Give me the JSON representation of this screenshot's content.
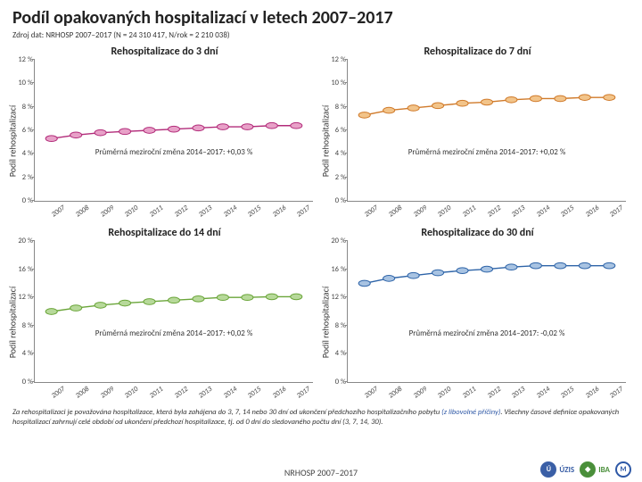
{
  "title": "Podíl opakovaných hospitalizací v letech 2007–2017",
  "source": "Zdroj dat: NRHOSP 2007–2017 (N = 24 310 417, N/rok = 2 210 038)",
  "years": [
    "2007",
    "2008",
    "2009",
    "2010",
    "2011",
    "2012",
    "2013",
    "2014",
    "2015",
    "2016",
    "2017"
  ],
  "y_axis_label": "Podíl rehospitalizací",
  "y_ticks_lower": [
    0,
    2,
    4,
    6,
    8,
    10,
    12
  ],
  "y_ticks_upper": [
    0,
    4,
    8,
    12,
    16,
    20
  ],
  "panels": [
    {
      "title": "Rehospitalizace do 3 dní",
      "annotation": "Průměrná meziroční změna 2014–2017: +0,03 %",
      "ylim": [
        0,
        12
      ],
      "ticks": "lower",
      "values": [
        5.3,
        5.6,
        5.8,
        5.9,
        6.0,
        6.1,
        6.2,
        6.3,
        6.3,
        6.4,
        6.4
      ],
      "line_color": "#b22c7a",
      "marker_fill": "#e8a1c8"
    },
    {
      "title": "Rehospitalizace do 7 dní",
      "annotation": "Průměrná meziroční změna 2014–2017: +0,02 %",
      "ylim": [
        0,
        12
      ],
      "ticks": "lower",
      "values": [
        7.3,
        7.7,
        7.9,
        8.1,
        8.3,
        8.4,
        8.6,
        8.7,
        8.7,
        8.8,
        8.8
      ],
      "line_color": "#d07a2a",
      "marker_fill": "#f2c48a"
    },
    {
      "title": "Rehospitalizace do 14 dní",
      "annotation": "Průměrná meziroční změna 2014–2017: +0,02 %",
      "ylim": [
        0,
        20
      ],
      "ticks": "upper",
      "values": [
        10.0,
        10.5,
        10.9,
        11.2,
        11.4,
        11.6,
        11.8,
        12.0,
        12.0,
        12.1,
        12.1
      ],
      "line_color": "#6aa539",
      "marker_fill": "#b7d99a"
    },
    {
      "title": "Rehospitalizace do 30 dní",
      "annotation": "Průměrná meziroční změna 2014–2017: -0,02 %",
      "ylim": [
        0,
        20
      ],
      "ticks": "upper",
      "values": [
        14.0,
        14.7,
        15.1,
        15.5,
        15.8,
        16.0,
        16.3,
        16.5,
        16.5,
        16.5,
        16.5
      ],
      "line_color": "#2e64a8",
      "marker_fill": "#a8c3e2"
    }
  ],
  "footnote_main": "Za rehospitalizaci je považována hospitalizace, která byla zahájena do 3, 7, 14 nebo 30 dní od ukončení předchozího hospitalizačního pobytu ",
  "footnote_hl": "(z libovolné příčiny)",
  "footnote_tail": ". Všechny časové definice opakovaných hospitalizací zahrnují celé období od ukončení předchozí hospitalizace, tj. od 0 dní do sledovaného počtu dní (3, 7, 14, 30).",
  "footer": "NRHOSP 2007–2017",
  "logos": {
    "uzis": {
      "text": "ÚZIS",
      "color": "#3a5fa6"
    },
    "iba": {
      "text": "IBA",
      "color": "#4a8f3a"
    },
    "mu": {
      "text": "",
      "color": "#2e58a6"
    }
  },
  "style": {
    "grid_color": "#888888",
    "bg": "#ffffff",
    "marker_radius": 3,
    "line_width": 1.4
  }
}
